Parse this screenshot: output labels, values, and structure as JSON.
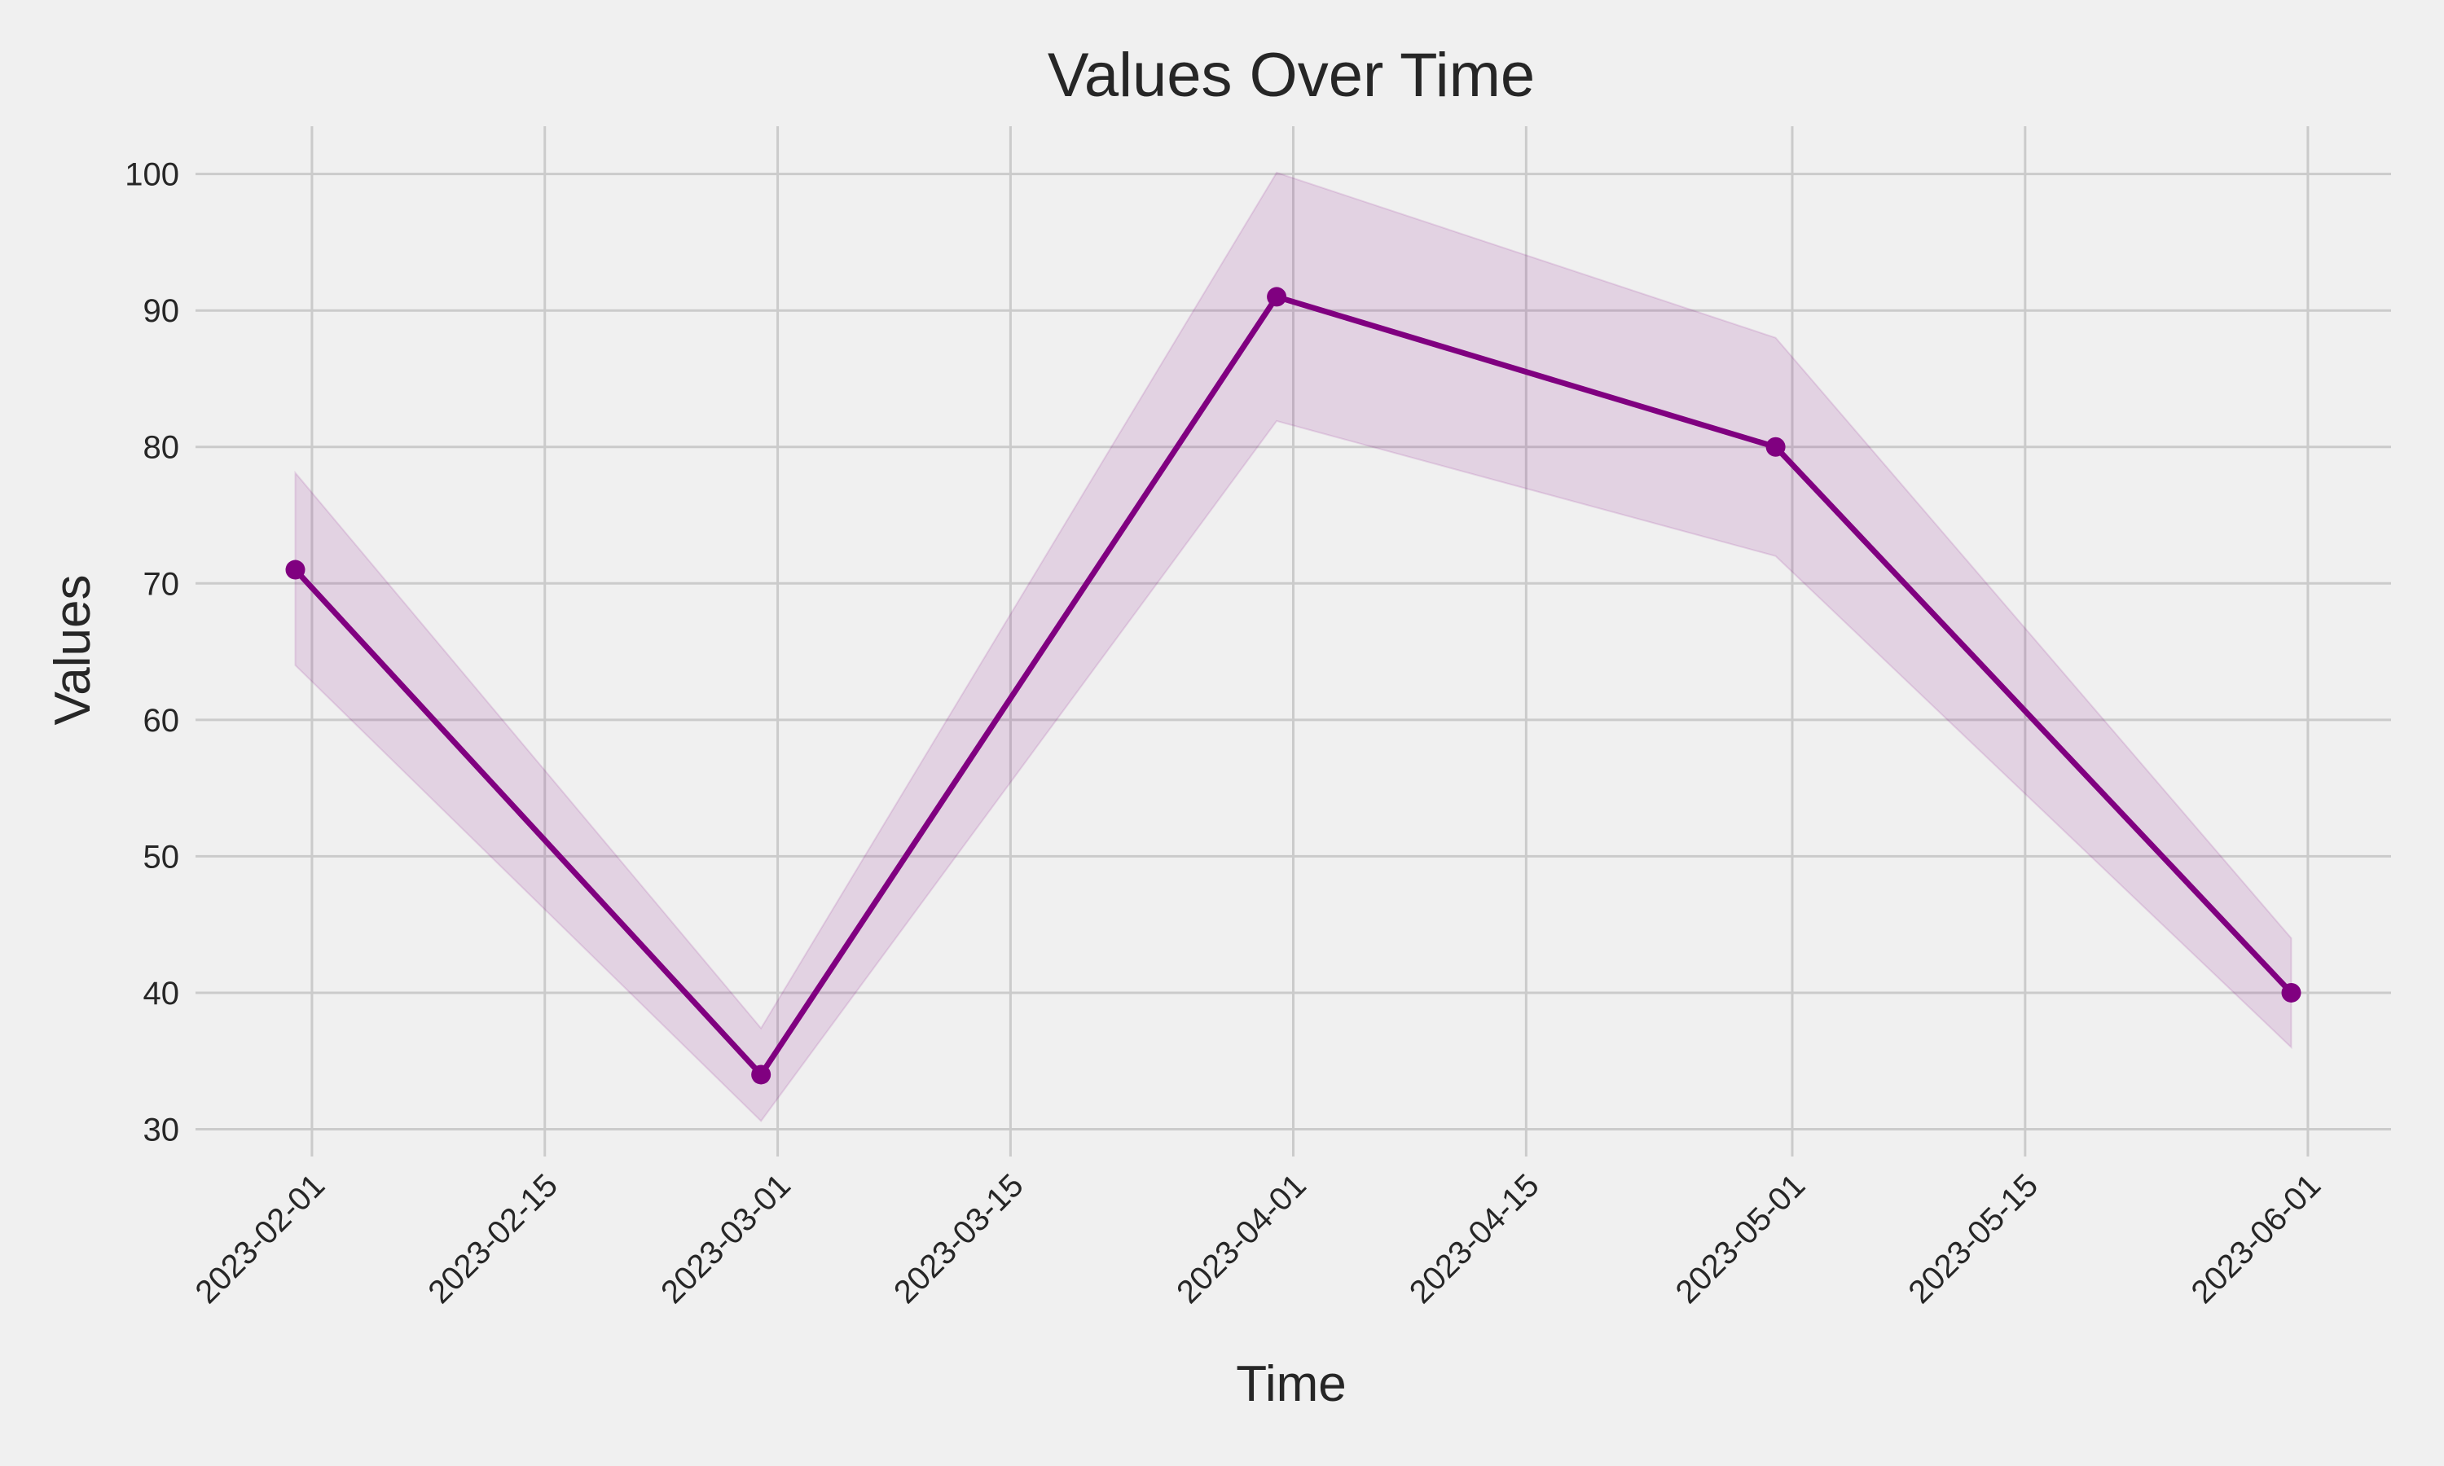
{
  "chart_data": {
    "type": "line",
    "title": "Values Over Time",
    "xlabel": "Time",
    "ylabel": "Values",
    "x": [
      "2023-01-31",
      "2023-02-28",
      "2023-03-31",
      "2023-04-30",
      "2023-05-31"
    ],
    "series": [
      {
        "values": [
          71,
          34,
          91,
          80,
          40
        ],
        "lower": [
          64,
          30.6,
          81.9,
          72,
          36
        ],
        "upper": [
          78.1,
          37.4,
          100.1,
          88,
          44
        ],
        "color": "#800080"
      }
    ],
    "x_ticks": [
      "2023-02-01",
      "2023-02-15",
      "2023-03-01",
      "2023-03-15",
      "2023-04-01",
      "2023-04-15",
      "2023-05-01",
      "2023-05-15",
      "2023-06-01"
    ],
    "y_ticks": [
      30,
      40,
      50,
      60,
      70,
      80,
      90,
      100
    ],
    "xlim": [
      "2023-01-25",
      "2023-06-06"
    ],
    "ylim": [
      28,
      103.5
    ],
    "grid": true,
    "background": "#f0f0f0",
    "band_color": "#800080"
  }
}
